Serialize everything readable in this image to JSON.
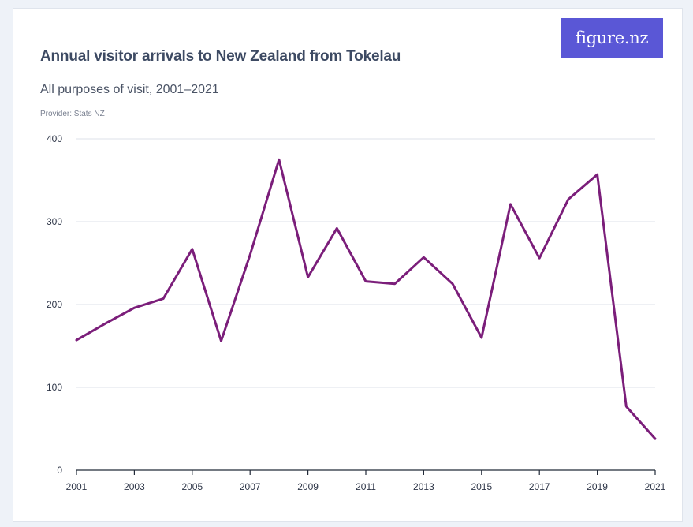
{
  "logo": {
    "text": "figure.nz"
  },
  "chart_data": {
    "type": "line",
    "title": "Annual visitor arrivals to New Zealand from Tokelau",
    "subtitle": "All purposes of visit, 2001–2021",
    "provider": "Provider: Stats NZ",
    "xlabel": "",
    "ylabel": "",
    "x": [
      2001,
      2002,
      2003,
      2004,
      2005,
      2006,
      2007,
      2008,
      2009,
      2010,
      2011,
      2012,
      2013,
      2014,
      2015,
      2016,
      2017,
      2018,
      2019,
      2020,
      2021
    ],
    "x_tick_labels": [
      "2001",
      "2003",
      "2005",
      "2007",
      "2009",
      "2011",
      "2013",
      "2015",
      "2017",
      "2019",
      "2021"
    ],
    "y_tick_labels": [
      "0",
      "100",
      "200",
      "300",
      "400"
    ],
    "ylim": [
      0,
      400
    ],
    "grid": true,
    "series": [
      {
        "color": "#7b1e7a",
        "values": [
          157,
          177,
          196,
          207,
          267,
          156,
          260,
          375,
          233,
          292,
          228,
          225,
          257,
          225,
          160,
          321,
          256,
          327,
          357,
          77,
          38
        ]
      }
    ]
  }
}
